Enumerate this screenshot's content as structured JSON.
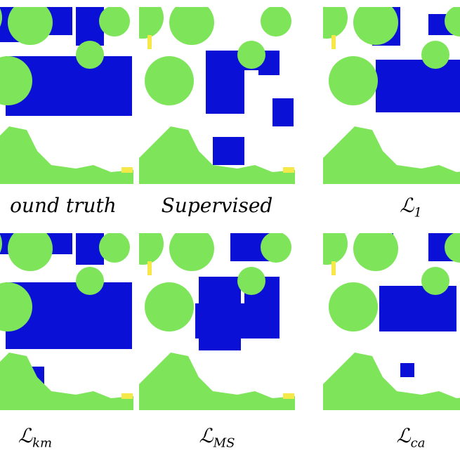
{
  "panels": [
    {
      "label": "ound truth"
    },
    {
      "label": "Supervised"
    },
    {
      "label": "ℒ",
      "subscript": "1"
    },
    {
      "label": "ℒ",
      "subscript": "km"
    },
    {
      "label": "ℒ",
      "subscript": "MS"
    },
    {
      "label": "ℒ",
      "subscript": "ca"
    }
  ]
}
